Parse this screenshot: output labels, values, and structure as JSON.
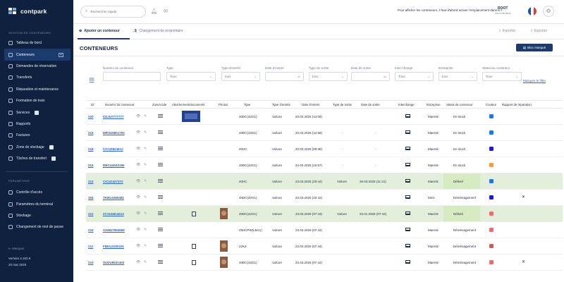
{
  "app": {
    "brand": "contpark"
  },
  "sidebar": {
    "section1": "GESTION DE CONTENEURS",
    "items": [
      {
        "label": "Tableau de bord",
        "active": false
      },
      {
        "label": "Conteneurs",
        "active": true
      },
      {
        "label": "Demandes de réservation",
        "active": false
      },
      {
        "label": "Transferts",
        "active": false
      },
      {
        "label": "Réparation et maintenance",
        "active": false
      },
      {
        "label": "Formation de train",
        "active": false
      },
      {
        "label": "Services",
        "active": false,
        "badge": " "
      },
      {
        "label": "Rapports",
        "active": false
      },
      {
        "label": "Factures",
        "active": false
      },
      {
        "label": "Zone de stockage",
        "active": false,
        "badge": " "
      },
      {
        "label": "Tâches de transfert",
        "active": false,
        "badge": " "
      }
    ],
    "section2": "PARAMÈTRES",
    "items2": [
      {
        "label": "Contrôle d'accès"
      },
      {
        "label": "Paramètres du terminal"
      },
      {
        "label": "Stockage"
      },
      {
        "label": "Changement de mot de passe"
      }
    ],
    "collapse": "Masquer",
    "version": "Version 4.102.9",
    "date": "20 mar 2025"
  },
  "topbar": {
    "search_placeholder": "Rechercher rapide",
    "notice": "Pour afficher les conteneurs, il faut d'abord activer l'emplacement dans le terminal",
    "user": "ROOT",
    "user_sub": "Administrateur"
  },
  "tabs": [
    {
      "label": "Ajouter un conteneur",
      "active": true
    },
    {
      "label": "Changement de propriétaire",
      "active": false
    }
  ],
  "actions": {
    "import": "Importer",
    "export": "Exporter"
  },
  "page": {
    "title": "CONTENEURS",
    "button": "Bloc masqué"
  },
  "filters": {
    "hide_label": "Masquer le filtre",
    "fields": [
      {
        "label": "Numéro du conteneur",
        "value": ""
      },
      {
        "label": "Type",
        "value": "Tous"
      },
      {
        "label": "Type d'entrée",
        "value": "tous"
      },
      {
        "label": "Date d'entrée",
        "value": ""
      },
      {
        "label": "Type de sortie",
        "value": "tous"
      },
      {
        "label": "Date de sortie",
        "value": ""
      },
      {
        "label": "Inter-change",
        "value": "Tous"
      },
      {
        "label": "Entreprise",
        "value": "tous"
      },
      {
        "label": "Statut du conteneur",
        "value": "Tous"
      }
    ]
  },
  "table": {
    "headers": [
      "ID",
      "Numéro du conteneur",
      "Zone/code",
      "Attachement/documents",
      "Photos",
      "Type",
      "Type d'entrée",
      "Date d'entrée",
      "Type de sortie",
      "Date de sortie",
      "Interchange",
      "Entreprise",
      "Statut du conteneur",
      "Couleur",
      "Rapport de réparation"
    ],
    "rows": [
      {
        "id": "220",
        "number": "CEJU7777777",
        "type": "40DC(42G1)",
        "entry_type": "Voiture",
        "entry_date": "20.03.2025 (13:08)",
        "exit_type": "",
        "exit_date": "",
        "company": "Maersk",
        "status": "En stock",
        "color": "#1677ff",
        "thumb": true,
        "photo": false,
        "file": false,
        "repair": false,
        "hl": false
      },
      {
        "id": "219",
        "number": "MRSU5801763",
        "type": "40DC(42G1)",
        "entry_type": "Voiture",
        "entry_date": "20.03.2025 (12:58)",
        "exit_type": "-",
        "exit_date": "-",
        "company": "Maersk",
        "status": "En stock",
        "color": "#1677ff",
        "thumb": false,
        "photo": false,
        "file": false,
        "repair": false,
        "hl": false
      },
      {
        "id": "218",
        "number": "CICU2824612",
        "type": "40HC",
        "entry_type": "Voiture",
        "entry_date": "20.03.2025 (09:38)",
        "exit_type": "-",
        "exit_date": "-",
        "company": "Maersk",
        "status": "En stock",
        "color": "#1a1adb",
        "thumb": false,
        "photo": false,
        "file": false,
        "repair": false,
        "hl": false
      },
      {
        "id": "216",
        "number": "RBCU4043195",
        "type": "40DC(42G1)",
        "entry_type": "Voiture",
        "entry_date": "24.03.2025 (16:57)",
        "exit_type": "-",
        "exit_date": "-",
        "company": "Maersk",
        "status": "En stock",
        "color": "#fa9c3c",
        "thumb": false,
        "photo": false,
        "file": false,
        "repair": false,
        "hl": false
      },
      {
        "id": "213",
        "number": "CICU2427372",
        "type": "40HC",
        "entry_type": "Voiture",
        "entry_date": "23.03.2025 (20:44)",
        "exit_type": "Voiture",
        "exit_date": "26.03.2025 (11:21)",
        "company": "Maersk",
        "status": "Délivré",
        "color": "#1677ff",
        "thumb": false,
        "photo": false,
        "file": false,
        "repair": false,
        "hl": true
      },
      {
        "id": "193",
        "number": "TKRU4359481",
        "type": "40DC(42G1)",
        "entry_type": "Voiture",
        "entry_date": "23.03.2025 (20:42)",
        "exit_type": "",
        "exit_date": "",
        "company": "MSC",
        "status": "Déménagement",
        "color": "#1a1adb",
        "thumb": false,
        "photo": false,
        "file": false,
        "repair": true,
        "hl": false
      },
      {
        "id": "212",
        "number": "ZCSU6814613",
        "type": "40DC(42G1)",
        "entry_type": "Voiture",
        "entry_date": "23.03.2025 (07:43)",
        "exit_type": "Voiture",
        "exit_date": "23.01.2025 (07:43)",
        "company": "Maersk",
        "status": "Délivré",
        "color": "#f06a6a",
        "thumb": false,
        "photo": true,
        "file": true,
        "repair": false,
        "hl": true
      },
      {
        "id": "215",
        "number": "SAMU7994569",
        "type": "45HCPW(L5G1)",
        "entry_type": "Voiture",
        "entry_date": "23.03.2025 (07:44)",
        "exit_type": "",
        "exit_date": "",
        "company": "Maersk",
        "status": "Déménagement",
        "color": "#f06a6a",
        "thumb": false,
        "photo": false,
        "file": false,
        "repair": false,
        "hl": false
      },
      {
        "id": "211",
        "number": "FBKU1000191",
        "type": "22K2",
        "entry_type": "Voiture",
        "entry_date": "23.03.2025 (07:44)",
        "exit_type": "",
        "exit_date": "",
        "company": "Maersk",
        "status": "Déménagement",
        "color": "#d45a5a",
        "thumb": false,
        "photo": true,
        "file": true,
        "repair": false,
        "hl": false
      },
      {
        "id": "210",
        "number": "SUDU8531403",
        "type": "40DC(42G1)",
        "entry_type": "Voiture",
        "entry_date": "23.03.2025 (07:44)",
        "exit_type": "",
        "exit_date": "",
        "company": "Maersk",
        "status": "Déménagement",
        "color": "#f06a6a",
        "thumb": false,
        "photo": true,
        "file": true,
        "repair": true,
        "hl": false
      }
    ]
  }
}
